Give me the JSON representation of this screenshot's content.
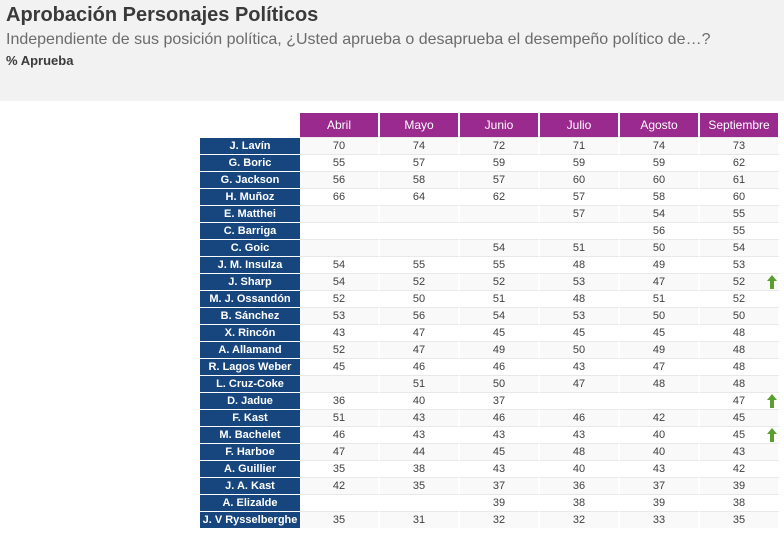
{
  "title": "Aprobación Personajes Políticos",
  "subtitle": "Independiente de sus posición política, ¿Usted aprueba o desaprueba el desempeño político de…?",
  "measure": "% Aprueba",
  "colors": {
    "header_bg": "#9b2a8f",
    "name_bg": "#17467f",
    "arrow": "#5a9e2f"
  },
  "chart_data": {
    "type": "table",
    "columns": [
      "Abril",
      "Mayo",
      "Junio",
      "Julio",
      "Agosto",
      "Septiembre"
    ],
    "rows": [
      {
        "name": "J. Lavín",
        "values": [
          "70",
          "74",
          "72",
          "71",
          "74",
          "73"
        ],
        "arrow": ""
      },
      {
        "name": "G. Boric",
        "values": [
          "55",
          "57",
          "59",
          "59",
          "59",
          "62"
        ],
        "arrow": ""
      },
      {
        "name": "G. Jackson",
        "values": [
          "56",
          "58",
          "57",
          "60",
          "60",
          "61"
        ],
        "arrow": ""
      },
      {
        "name": "H. Muñoz",
        "values": [
          "66",
          "64",
          "62",
          "57",
          "58",
          "60"
        ],
        "arrow": ""
      },
      {
        "name": "E. Matthei",
        "values": [
          "",
          "",
          "",
          "57",
          "54",
          "55"
        ],
        "arrow": ""
      },
      {
        "name": "C. Barriga",
        "values": [
          "",
          "",
          "",
          "",
          "56",
          "55"
        ],
        "arrow": ""
      },
      {
        "name": "C. Goic",
        "values": [
          "",
          "",
          "54",
          "51",
          "50",
          "54"
        ],
        "arrow": ""
      },
      {
        "name": "J. M. Insulza",
        "values": [
          "54",
          "55",
          "55",
          "48",
          "49",
          "53"
        ],
        "arrow": ""
      },
      {
        "name": "J. Sharp",
        "values": [
          "54",
          "52",
          "52",
          "53",
          "47",
          "52"
        ],
        "arrow": "up"
      },
      {
        "name": "M. J. Ossandón",
        "values": [
          "52",
          "50",
          "51",
          "48",
          "51",
          "52"
        ],
        "arrow": ""
      },
      {
        "name": "B. Sánchez",
        "values": [
          "53",
          "56",
          "54",
          "53",
          "50",
          "50"
        ],
        "arrow": ""
      },
      {
        "name": "X. Rincón",
        "values": [
          "43",
          "47",
          "45",
          "45",
          "45",
          "48"
        ],
        "arrow": ""
      },
      {
        "name": "A. Allamand",
        "values": [
          "52",
          "47",
          "49",
          "50",
          "49",
          "48"
        ],
        "arrow": ""
      },
      {
        "name": "R. Lagos Weber",
        "values": [
          "45",
          "46",
          "46",
          "43",
          "47",
          "48"
        ],
        "arrow": ""
      },
      {
        "name": "L. Cruz-Coke",
        "values": [
          "",
          "51",
          "50",
          "47",
          "48",
          "48"
        ],
        "arrow": ""
      },
      {
        "name": "D. Jadue",
        "values": [
          "36",
          "40",
          "37",
          "",
          "",
          "47"
        ],
        "arrow": "up"
      },
      {
        "name": "F. Kast",
        "values": [
          "51",
          "43",
          "46",
          "46",
          "42",
          "45"
        ],
        "arrow": ""
      },
      {
        "name": "M. Bachelet",
        "values": [
          "46",
          "43",
          "43",
          "43",
          "40",
          "45"
        ],
        "arrow": "up"
      },
      {
        "name": "F. Harboe",
        "values": [
          "47",
          "44",
          "45",
          "48",
          "40",
          "43"
        ],
        "arrow": ""
      },
      {
        "name": "A. Guillier",
        "values": [
          "35",
          "38",
          "43",
          "40",
          "43",
          "42"
        ],
        "arrow": ""
      },
      {
        "name": "J. A. Kast",
        "values": [
          "42",
          "35",
          "37",
          "36",
          "37",
          "39"
        ],
        "arrow": ""
      },
      {
        "name": "A. Elizalde",
        "values": [
          "",
          "",
          "39",
          "38",
          "39",
          "38"
        ],
        "arrow": ""
      },
      {
        "name": "J. V Rysselberghe",
        "values": [
          "35",
          "31",
          "32",
          "32",
          "33",
          "35"
        ],
        "arrow": ""
      }
    ]
  }
}
